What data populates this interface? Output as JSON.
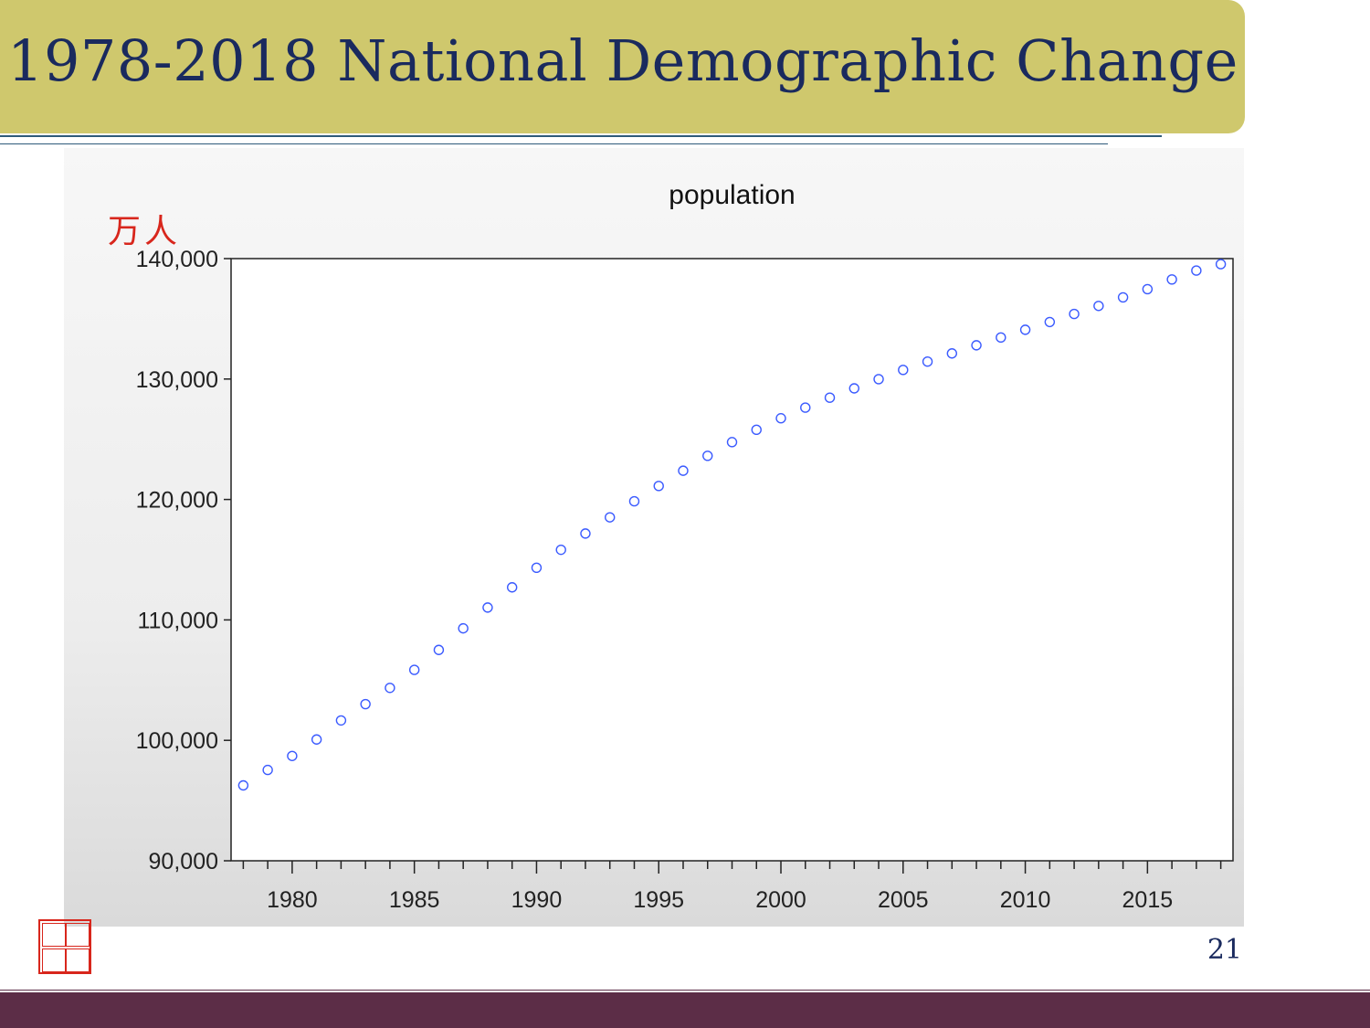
{
  "slide": {
    "title": "1978-2018 National Demographic Change",
    "unit_label": "万人",
    "page_number": "21"
  },
  "colors": {
    "title_bar": "#cfc86d",
    "title_text": "#1a2a5e",
    "marker": "#3b5bff",
    "footer": "#5c2d47",
    "unit_label": "#d8261c"
  },
  "chart_data": {
    "type": "scatter",
    "title": "population",
    "xlabel": "",
    "ylabel": "",
    "xlim": [
      1977.5,
      2018.5
    ],
    "ylim": [
      90000,
      140000
    ],
    "yticks": [
      90000,
      100000,
      110000,
      120000,
      130000,
      140000
    ],
    "ytick_labels": [
      "90,000",
      "100,000",
      "110,000",
      "120,000",
      "130,000",
      "140,000"
    ],
    "xticks": [
      1980,
      1985,
      1990,
      1995,
      2000,
      2005,
      2010,
      2015
    ],
    "xtick_labels": [
      "1980",
      "1985",
      "1990",
      "1995",
      "2000",
      "2005",
      "2010",
      "2015"
    ],
    "grid": false,
    "marker": "open-circle",
    "series": [
      {
        "x": [
          1978,
          1979,
          1980,
          1981,
          1982,
          1983,
          1984,
          1985,
          1986,
          1987,
          1988,
          1989,
          1990,
          1991,
          1992,
          1993,
          1994,
          1995,
          1996,
          1997,
          1998,
          1999,
          2000,
          2001,
          2002,
          2003,
          2004,
          2005,
          2006,
          2007,
          2008,
          2009,
          2010,
          2011,
          2012,
          2013,
          2014,
          2015,
          2016,
          2017,
          2018
        ],
        "y": [
          96259,
          97542,
          98705,
          100072,
          101654,
          103008,
          104357,
          105851,
          107507,
          109300,
          111026,
          112704,
          114333,
          115823,
          117171,
          118517,
          119850,
          121121,
          122389,
          123626,
          124761,
          125786,
          126743,
          127627,
          128453,
          129227,
          129988,
          130756,
          131448,
          132129,
          132802,
          133450,
          134091,
          134735,
          135404,
          136072,
          136782,
          137462,
          138271,
          139008,
          139538
        ]
      }
    ]
  }
}
